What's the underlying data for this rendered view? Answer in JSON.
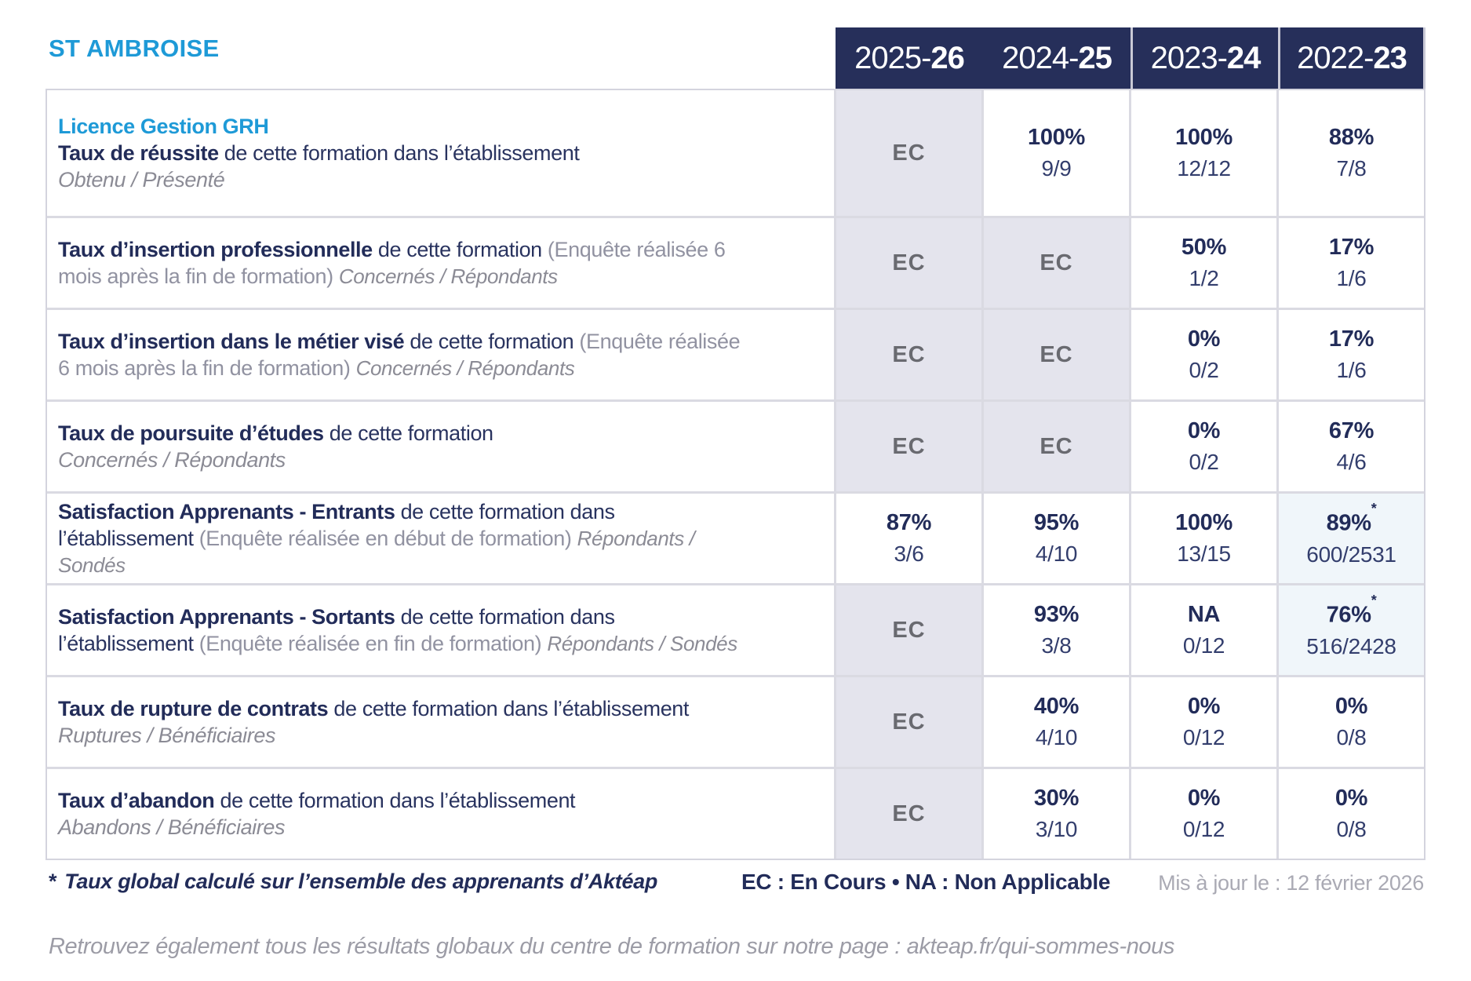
{
  "site_label": "ST AMBROISE",
  "program_title": "Licence Gestion GRH",
  "years": [
    {
      "pre": "2025-",
      "bold": "26"
    },
    {
      "pre": "2024-",
      "bold": "25"
    },
    {
      "pre": "2023-",
      "bold": "24"
    },
    {
      "pre": "2022-",
      "bold": "23"
    }
  ],
  "rows": [
    {
      "title": "Taux de réussite",
      "desc": " de cette formation dans l’établissement",
      "sub": "Obtenu / Présenté",
      "cells": [
        {
          "label": "EC"
        },
        {
          "pct": "100%",
          "frac": "9/9"
        },
        {
          "pct": "100%",
          "frac": "12/12"
        },
        {
          "pct": "88%",
          "frac": "7/8"
        }
      ]
    },
    {
      "title": "Taux d’insertion professionnelle",
      "desc": " de cette formation ",
      "paren": "(Enquête réalisée 6 mois après la fin de formation) ",
      "sub": "Concernés / Répondants",
      "cells": [
        {
          "label": "EC"
        },
        {
          "label": "EC"
        },
        {
          "pct": "50%",
          "frac": "1/2"
        },
        {
          "pct": "17%",
          "frac": "1/6"
        }
      ]
    },
    {
      "title": "Taux d’insertion dans le métier visé",
      "desc": " de cette formation ",
      "paren": "(Enquête réalisée 6 mois après la fin de formation) ",
      "sub": "Concernés / Répondants",
      "cells": [
        {
          "label": "EC"
        },
        {
          "label": "EC"
        },
        {
          "pct": "0%",
          "frac": "0/2"
        },
        {
          "pct": "17%",
          "frac": "1/6"
        }
      ]
    },
    {
      "title": "Taux de poursuite d’études",
      "desc": " de cette formation",
      "sub": "Concernés / Répondants",
      "cells": [
        {
          "label": "EC"
        },
        {
          "label": "EC"
        },
        {
          "pct": "0%",
          "frac": "0/2"
        },
        {
          "pct": "67%",
          "frac": "4/6"
        }
      ]
    },
    {
      "title": "Satisfaction Apprenants - Entrants",
      "desc": " de cette formation dans l’établissement ",
      "paren": "(Enquête réalisée en début de formation) ",
      "sub": "Répondants / Sondés",
      "cells": [
        {
          "pct": "87%",
          "frac": "3/6"
        },
        {
          "pct": "95%",
          "frac": "4/10"
        },
        {
          "pct": "100%",
          "frac": "13/15"
        },
        {
          "pct": "89%",
          "star": "*",
          "frac": "600/2531",
          "highlight": true
        }
      ]
    },
    {
      "title": "Satisfaction Apprenants - Sortants",
      "desc": " de cette formation dans l’établissement ",
      "paren": "(Enquête réalisée en fin de formation) ",
      "sub": "Répondants / Sondés",
      "cells": [
        {
          "label": "EC"
        },
        {
          "pct": "93%",
          "frac": "3/8"
        },
        {
          "pct": "NA",
          "frac": "0/12"
        },
        {
          "pct": "76%",
          "star": "*",
          "frac": "516/2428",
          "highlight": true
        }
      ]
    },
    {
      "title": "Taux de rupture de contrats",
      "desc": " de cette formation dans l’établissement",
      "sub": "Ruptures / Bénéficiaires",
      "cells": [
        {
          "label": "EC"
        },
        {
          "pct": "40%",
          "frac": "4/10"
        },
        {
          "pct": "0%",
          "frac": "0/12"
        },
        {
          "pct": "0%",
          "frac": "0/8"
        }
      ]
    },
    {
      "title": "Taux d’abandon",
      "desc": " de cette formation dans l’établissement",
      "sub": "Abandons / Bénéficiaires",
      "cells": [
        {
          "label": "EC"
        },
        {
          "pct": "30%",
          "frac": "3/10"
        },
        {
          "pct": "0%",
          "frac": "0/12"
        },
        {
          "pct": "0%",
          "frac": "0/8"
        }
      ]
    }
  ],
  "footer": {
    "note_mark": "*",
    "note": "Taux global calculé sur l’ensemble des apprenants d’Aktéap",
    "legend": "EC : En Cours  •  NA : Non Applicable",
    "updated": "Mis à jour le : 12 février 2026",
    "bottom": "Retrouvez également tous les résultats globaux du centre de formation sur notre page : akteap.fr/qui-sommes-nous"
  },
  "colors": {
    "accent_blue": "#1e9ad7",
    "navy": "#222c59",
    "header_bg": "#262f5a",
    "ec_bg": "#e4e4ed",
    "highlight_bg": "#f0f6fa",
    "border": "#dadae2",
    "gray_text": "#8b8b95"
  }
}
